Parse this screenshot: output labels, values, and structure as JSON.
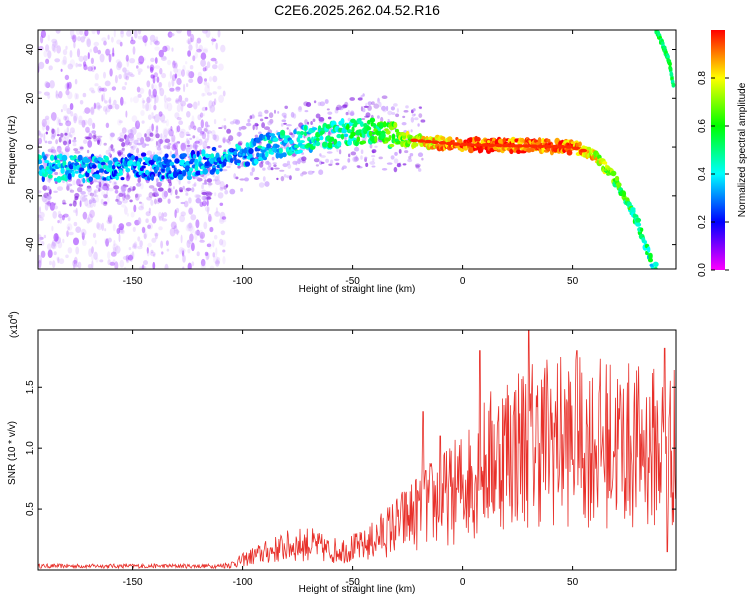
{
  "chart_data": [
    {
      "type": "heatmap",
      "title": "C2E6.2025.262.04.52.R16",
      "xlabel": "Height of straight line (km)",
      "ylabel": "Frequency (Hz)",
      "xlim": [
        -193,
        97
      ],
      "ylim": [
        -50,
        48
      ],
      "xticks": [
        -150,
        -100,
        -50,
        0,
        50
      ],
      "yticks": [
        -40,
        -20,
        0,
        20,
        40
      ],
      "colorbar": {
        "label": "Normalized spectral amplitude",
        "range": [
          0,
          1
        ],
        "ticks": [
          "0.0",
          "0.2",
          "0.4",
          "0.6",
          "0.8"
        ],
        "stops": [
          "#ff00ff",
          "#0000ff",
          "#00ffff",
          "#00ff00",
          "#ffff00",
          "#ff0000"
        ]
      },
      "ridge": {
        "x": [
          -193,
          -175,
          -150,
          -125,
          -100,
          -80,
          -60,
          -40,
          -25,
          0,
          50,
          60,
          70,
          80,
          87
        ],
        "y": [
          -8,
          -9,
          -8,
          -8,
          -3,
          2,
          5,
          7,
          3,
          1,
          0,
          -3,
          -14,
          -32,
          -50
        ],
        "amplitude": [
          0.35,
          0.35,
          0.3,
          0.3,
          0.35,
          0.4,
          0.45,
          0.55,
          0.7,
          0.95,
          0.9,
          0.8,
          0.6,
          0.5,
          0.45
        ]
      },
      "branch": {
        "x": [
          88,
          91,
          94,
          96
        ],
        "y": [
          48,
          42,
          35,
          24
        ]
      }
    },
    {
      "type": "line",
      "title": "",
      "xlabel": "Height of straight line (km)",
      "ylabel": "SNR (10 * v/v)",
      "multiplier_label": "(x10",
      "multiplier_exp": "4",
      "multiplier_close": ")",
      "xlim": [
        -193,
        97
      ],
      "ylim": [
        0,
        1.97
      ],
      "xticks": [
        -150,
        -100,
        -50,
        0,
        50
      ],
      "yticks": [
        "0.5",
        "1.0",
        "1.5"
      ],
      "color": "#e8302a",
      "envelope": {
        "x": [
          -193,
          -120,
          -105,
          -95,
          -80,
          -70,
          -60,
          -45,
          -35,
          -25,
          -15,
          -5,
          0,
          10,
          20,
          30,
          40,
          50,
          60,
          70,
          80,
          90,
          97
        ],
        "y": [
          0.02,
          0.02,
          0.06,
          0.15,
          0.25,
          0.28,
          0.2,
          0.25,
          0.4,
          0.55,
          0.7,
          0.8,
          0.9,
          1.1,
          1.3,
          1.35,
          1.4,
          1.35,
          1.35,
          1.35,
          1.3,
          1.3,
          1.3
        ]
      },
      "peaks": [
        {
          "x": 8,
          "y": 1.8
        },
        {
          "x": 30,
          "y": 1.97
        },
        {
          "x": 52,
          "y": 1.8
        },
        {
          "x": 92,
          "y": 1.82
        },
        {
          "x": 93,
          "y": 0.15
        },
        {
          "x": -18,
          "y": 1.3
        },
        {
          "x": -10,
          "y": 1.1
        }
      ]
    }
  ]
}
